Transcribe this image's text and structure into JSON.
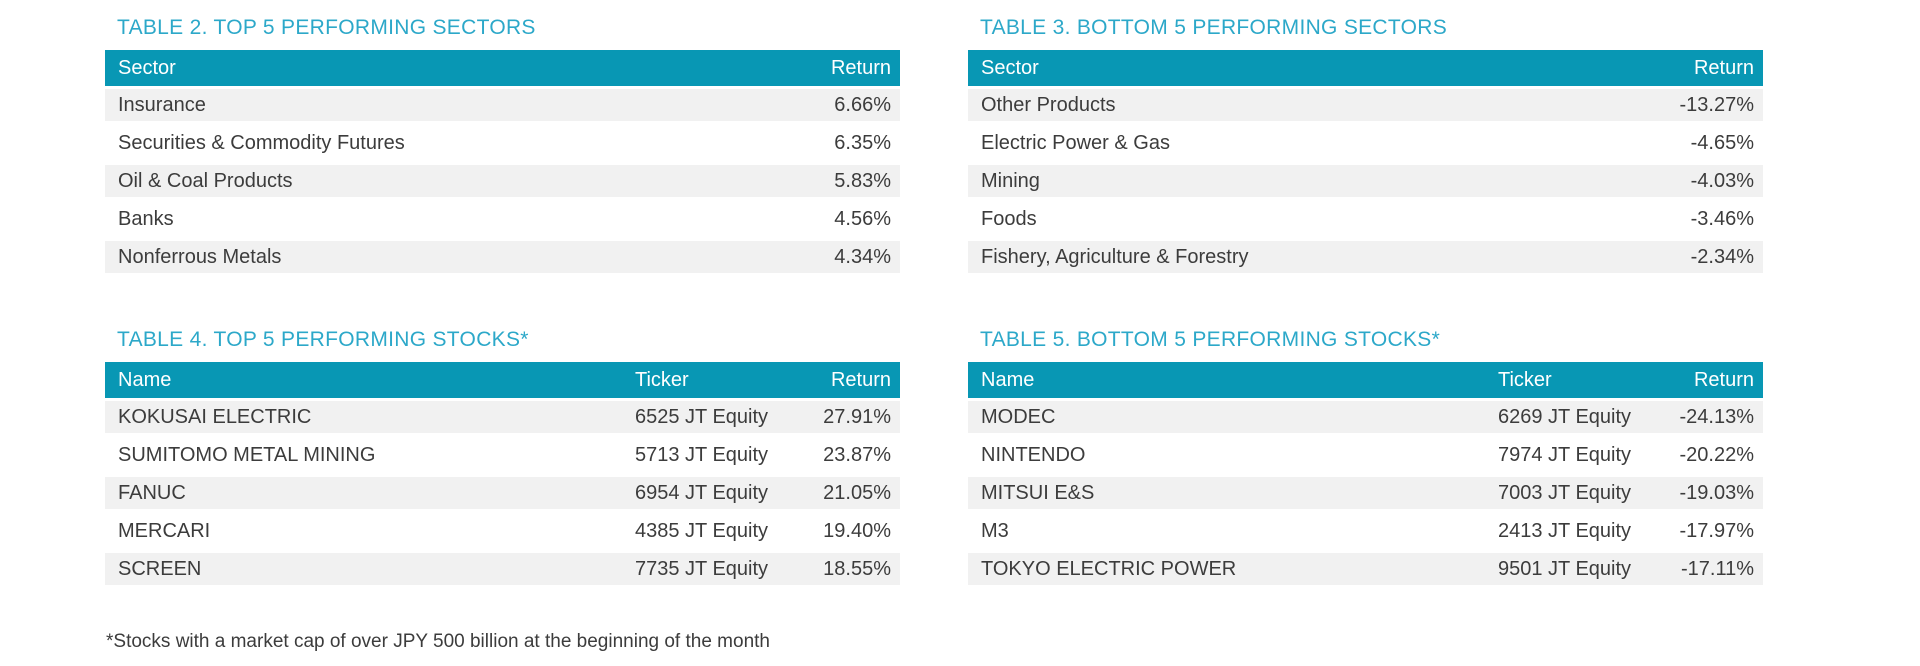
{
  "colors": {
    "header_bar": "#0897B4",
    "title_text": "#2CA8C9",
    "row_stripe": "#F1F1F1",
    "body_text": "#3C3C3C",
    "header_text": "#FFFFFF"
  },
  "tables": [
    {
      "title": "TABLE 2. TOP 5 PERFORMING SECTORS",
      "columns": [
        "Sector",
        "Return"
      ],
      "rows": [
        [
          "Insurance",
          "6.66%"
        ],
        [
          "Securities & Commodity Futures",
          "6.35%"
        ],
        [
          "Oil & Coal Products",
          "5.83%"
        ],
        [
          "Banks",
          "4.56%"
        ],
        [
          "Nonferrous Metals",
          "4.34%"
        ]
      ]
    },
    {
      "title": "TABLE 3. BOTTOM 5 PERFORMING SECTORS",
      "columns": [
        "Sector",
        "Return"
      ],
      "rows": [
        [
          "Other Products",
          "-13.27%"
        ],
        [
          "Electric Power & Gas",
          "-4.65%"
        ],
        [
          "Mining",
          "-4.03%"
        ],
        [
          "Foods",
          "-3.46%"
        ],
        [
          "Fishery, Agriculture & Forestry",
          "-2.34%"
        ]
      ]
    },
    {
      "title": "TABLE 4. TOP 5 PERFORMING STOCKS*",
      "columns": [
        "Name",
        "Ticker",
        "Return"
      ],
      "rows": [
        [
          "KOKUSAI ELECTRIC",
          "6525 JT Equity",
          "27.91%"
        ],
        [
          "SUMITOMO METAL MINING",
          "5713 JT Equity",
          "23.87%"
        ],
        [
          "FANUC",
          "6954 JT Equity",
          "21.05%"
        ],
        [
          "MERCARI",
          "4385 JT Equity",
          "19.40%"
        ],
        [
          "SCREEN",
          "7735 JT Equity",
          "18.55%"
        ]
      ]
    },
    {
      "title": "TABLE 5. BOTTOM 5 PERFORMING STOCKS*",
      "columns": [
        "Name",
        "Ticker",
        "Return"
      ],
      "rows": [
        [
          "MODEC",
          "6269 JT Equity",
          "-24.13%"
        ],
        [
          "NINTENDO",
          "7974 JT Equity",
          "-20.22%"
        ],
        [
          "MITSUI E&S",
          "7003 JT Equity",
          "-19.03%"
        ],
        [
          "M3",
          "2413 JT Equity",
          "-17.97%"
        ],
        [
          "TOKYO ELECTRIC POWER",
          "9501 JT Equity",
          "-17.11%"
        ]
      ]
    }
  ],
  "footnote": "*Stocks with a market cap of over JPY 500 billion at the beginning of the month"
}
